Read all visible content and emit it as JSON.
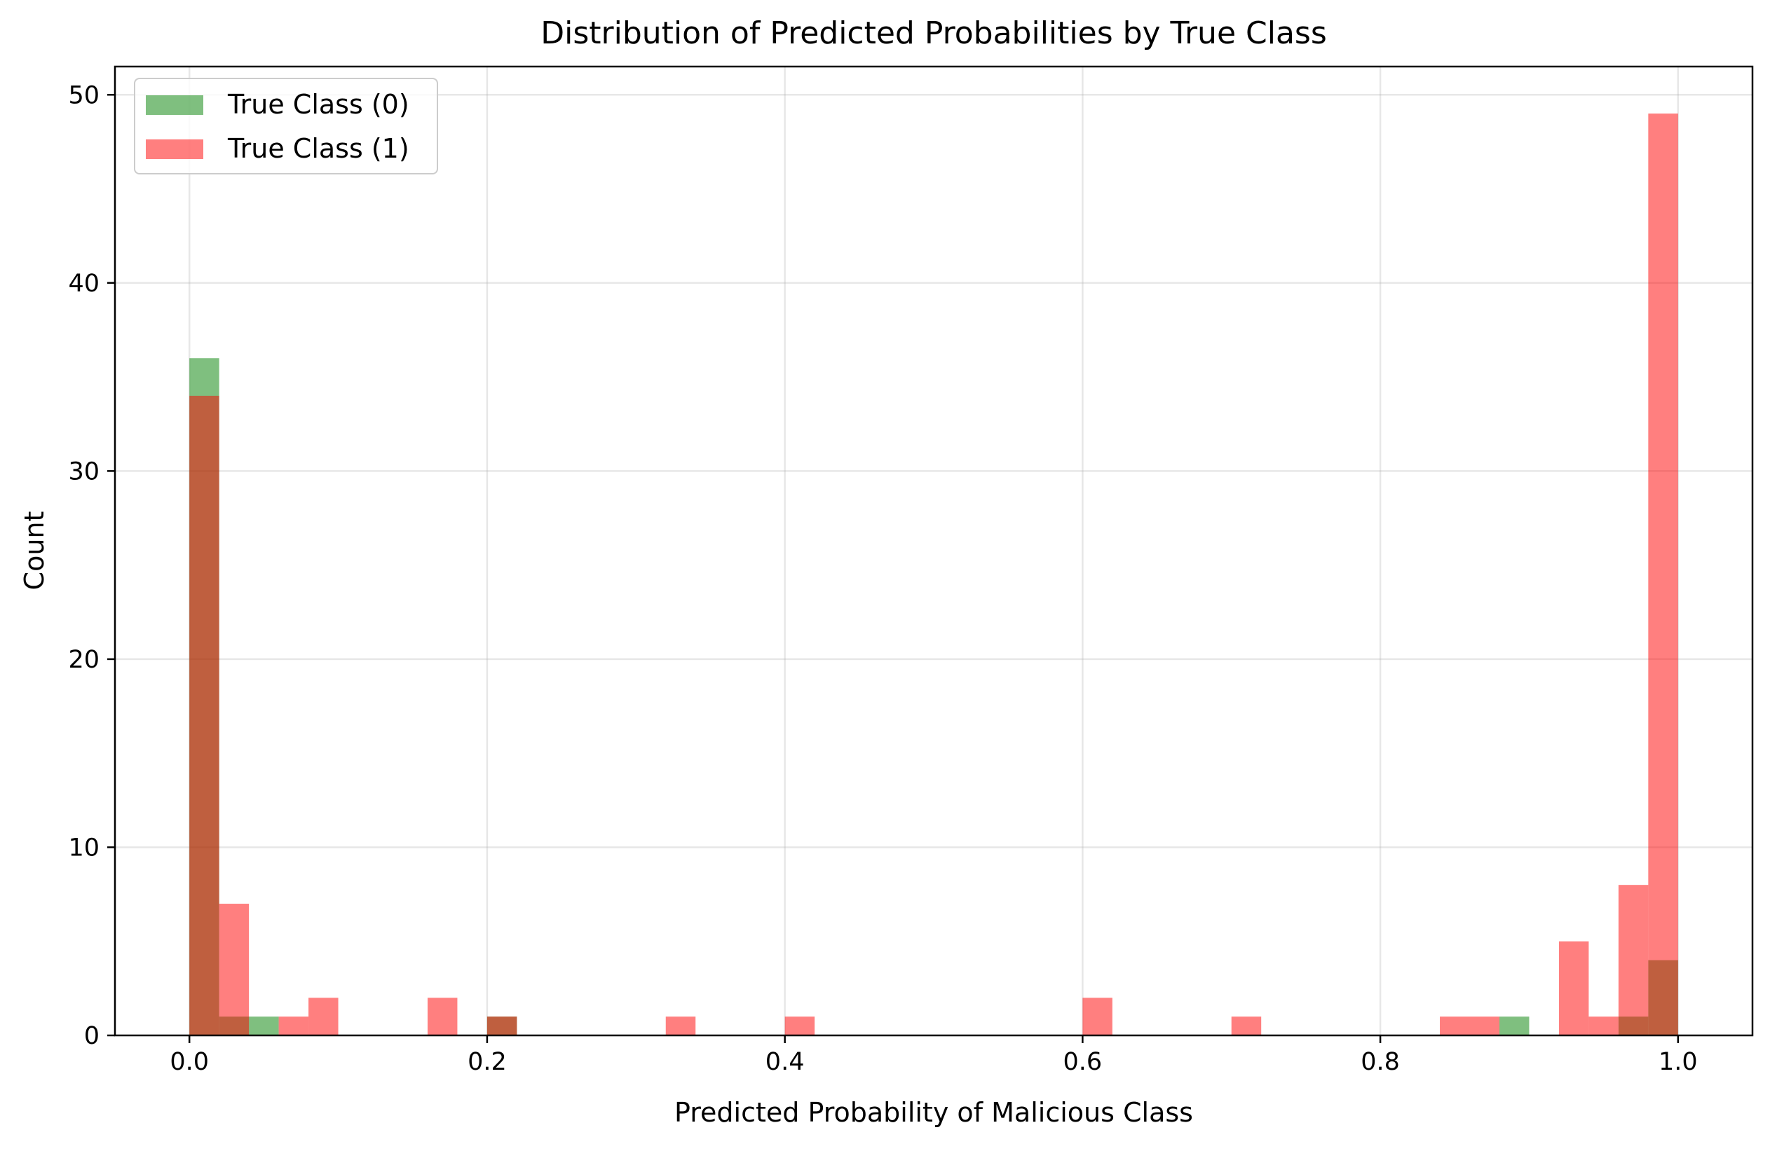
{
  "chart_data": {
    "type": "bar",
    "title": "Distribution of Predicted Probabilities by True Class",
    "xlabel": "Predicted Probability of Malicious Class",
    "ylabel": "Count",
    "xlim": [
      -0.05,
      1.05
    ],
    "ylim": [
      0,
      51.5
    ],
    "xticks": [
      0.0,
      0.2,
      0.4,
      0.6,
      0.8,
      1.0
    ],
    "xtick_labels": [
      "0.0",
      "0.2",
      "0.4",
      "0.6",
      "0.8",
      "1.0"
    ],
    "yticks": [
      0,
      10,
      20,
      30,
      40,
      50
    ],
    "ytick_labels": [
      "0",
      "10",
      "20",
      "30",
      "40",
      "50"
    ],
    "grid": true,
    "legend_position": "top-left",
    "bin_width": 0.02,
    "series": [
      {
        "name": "True Class (0)",
        "color": "#008000",
        "opacity": 0.5,
        "bins": [
          {
            "x": 0.0,
            "count": 36
          },
          {
            "x": 0.02,
            "count": 1
          },
          {
            "x": 0.04,
            "count": 1
          },
          {
            "x": 0.2,
            "count": 1
          },
          {
            "x": 0.88,
            "count": 1
          },
          {
            "x": 0.96,
            "count": 1
          },
          {
            "x": 0.98,
            "count": 4
          }
        ]
      },
      {
        "name": "True Class (1)",
        "color": "#ff0000",
        "opacity": 0.5,
        "bins": [
          {
            "x": 0.0,
            "count": 34
          },
          {
            "x": 0.02,
            "count": 7
          },
          {
            "x": 0.06,
            "count": 1
          },
          {
            "x": 0.08,
            "count": 2
          },
          {
            "x": 0.16,
            "count": 2
          },
          {
            "x": 0.2,
            "count": 1
          },
          {
            "x": 0.32,
            "count": 1
          },
          {
            "x": 0.4,
            "count": 1
          },
          {
            "x": 0.6,
            "count": 2
          },
          {
            "x": 0.7,
            "count": 1
          },
          {
            "x": 0.84,
            "count": 1
          },
          {
            "x": 0.86,
            "count": 1
          },
          {
            "x": 0.92,
            "count": 5
          },
          {
            "x": 0.94,
            "count": 1
          },
          {
            "x": 0.96,
            "count": 8
          },
          {
            "x": 0.98,
            "count": 49
          }
        ]
      }
    ]
  }
}
